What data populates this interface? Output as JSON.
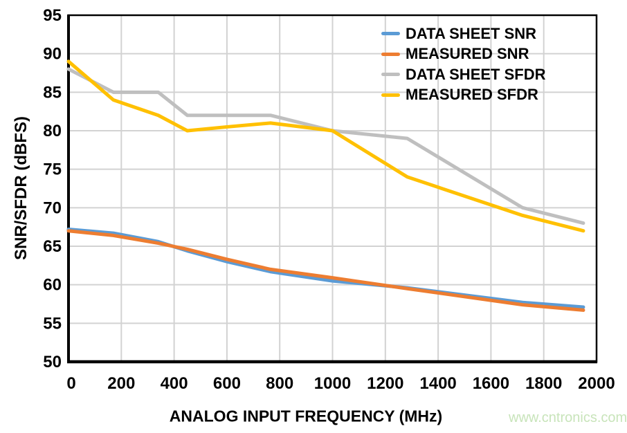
{
  "chart_data": {
    "type": "line",
    "title": "",
    "xlabel": "ANALOG INPUT FREQUENCY (MHz)",
    "ylabel": "SNR/SFDR (dBFS)",
    "xlim": [
      0,
      2000
    ],
    "ylim": [
      50,
      95
    ],
    "x_ticks": [
      0,
      200,
      400,
      600,
      800,
      1000,
      1200,
      1400,
      1600,
      1800,
      2000
    ],
    "y_ticks": [
      50,
      55,
      60,
      65,
      70,
      75,
      80,
      85,
      90,
      95
    ],
    "grid": true,
    "legend_position": "top-right-inside",
    "x": [
      0,
      170,
      340,
      450,
      600,
      765,
      1000,
      1283,
      1720,
      1950
    ],
    "series": [
      {
        "name": "DATA SHEET SNR",
        "color": "#5B9BD5",
        "values": [
          67.2,
          66.7,
          65.6,
          64.4,
          63.0,
          61.7,
          60.5,
          59.6,
          57.7,
          57.1
        ]
      },
      {
        "name": "MEASURED SNR",
        "color": "#ED7D31",
        "values": [
          67.0,
          66.4,
          65.4,
          64.6,
          63.3,
          62.0,
          60.9,
          59.5,
          57.4,
          56.7
        ]
      },
      {
        "name": "DATA SHEET SFDR",
        "color": "#BFBFBF",
        "values": [
          88,
          85,
          85,
          82,
          82,
          82,
          80,
          79,
          70,
          68
        ]
      },
      {
        "name": "MEASURED SFDR",
        "color": "#FFC000",
        "values": [
          89,
          84,
          82,
          80,
          80.5,
          81,
          80,
          74,
          69,
          67
        ]
      }
    ],
    "colors": {
      "grid": "#d2d2d2",
      "axis": "#000000"
    }
  },
  "watermark": {
    "text": "www.cntronics.com",
    "color": "#c8e4ba"
  }
}
